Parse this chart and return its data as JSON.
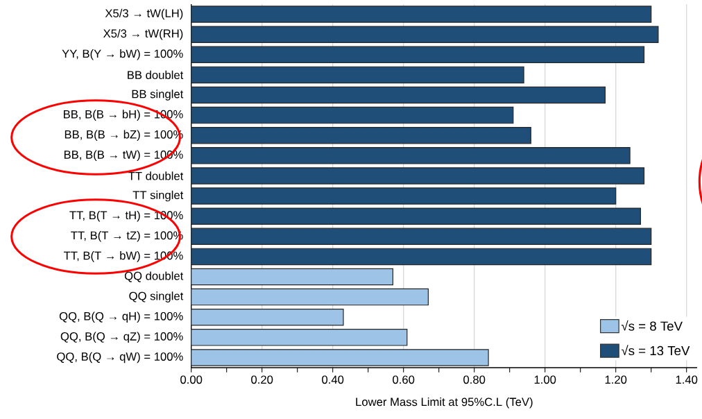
{
  "chart_data": {
    "type": "bar",
    "orientation": "horizontal",
    "xlabel": "Lower Mass Limit at 95%C.L (TeV)",
    "categories": [
      "X5/3 → tW(LH)",
      "X5/3 → tW(RH)",
      "YY, B(Y → bW) = 100%",
      "BB doublet",
      "BB singlet",
      "BB, B(B → bH) = 100%",
      "BB, B(B → bZ) = 100%",
      "BB, B(B → tW) = 100%",
      "TT doublet",
      "TT singlet",
      "TT, B(T → tH) = 100%",
      "TT, B(T → tZ) = 100%",
      "TT, B(T → bW) = 100%",
      "QQ doublet",
      "QQ singlet",
      "QQ, B(Q → qH) = 100%",
      "QQ, B(Q → qZ) = 100%",
      "QQ, B(Q → qW) = 100%"
    ],
    "series": [
      {
        "name": "√s = 8 TeV",
        "color": "#9dc3e6",
        "values": [
          null,
          null,
          null,
          null,
          null,
          null,
          null,
          null,
          null,
          null,
          null,
          null,
          null,
          0.57,
          0.67,
          0.43,
          0.61,
          0.84
        ]
      },
      {
        "name": "√s = 13 TeV",
        "color": "#1f4e79",
        "values": [
          1.3,
          1.32,
          1.28,
          0.94,
          1.17,
          0.91,
          0.96,
          1.24,
          1.28,
          1.2,
          1.27,
          1.3,
          1.3,
          null,
          null,
          null,
          null,
          null
        ]
      }
    ],
    "xlim": [
      0,
      1.43
    ],
    "xticks": [
      {
        "value": 0,
        "label": "0.00"
      },
      {
        "value": 0.1,
        "label": null
      },
      {
        "value": 0.2,
        "label": "0.20"
      },
      {
        "value": 0.3,
        "label": null
      },
      {
        "value": 0.4,
        "label": "0.40"
      },
      {
        "value": 0.5,
        "label": null
      },
      {
        "value": 0.6,
        "label": "0.60"
      },
      {
        "value": 0.7,
        "label": null
      },
      {
        "value": 0.8,
        "label": "0.80"
      },
      {
        "value": 0.9,
        "label": null
      },
      {
        "value": 1.0,
        "label": "1.00"
      },
      {
        "value": 1.1,
        "label": null
      },
      {
        "value": 1.2,
        "label": "1.20"
      },
      {
        "value": 1.3,
        "label": null
      },
      {
        "value": 1.4,
        "label": "1.40"
      }
    ],
    "grid": "x",
    "legend": "bottom right"
  }
}
